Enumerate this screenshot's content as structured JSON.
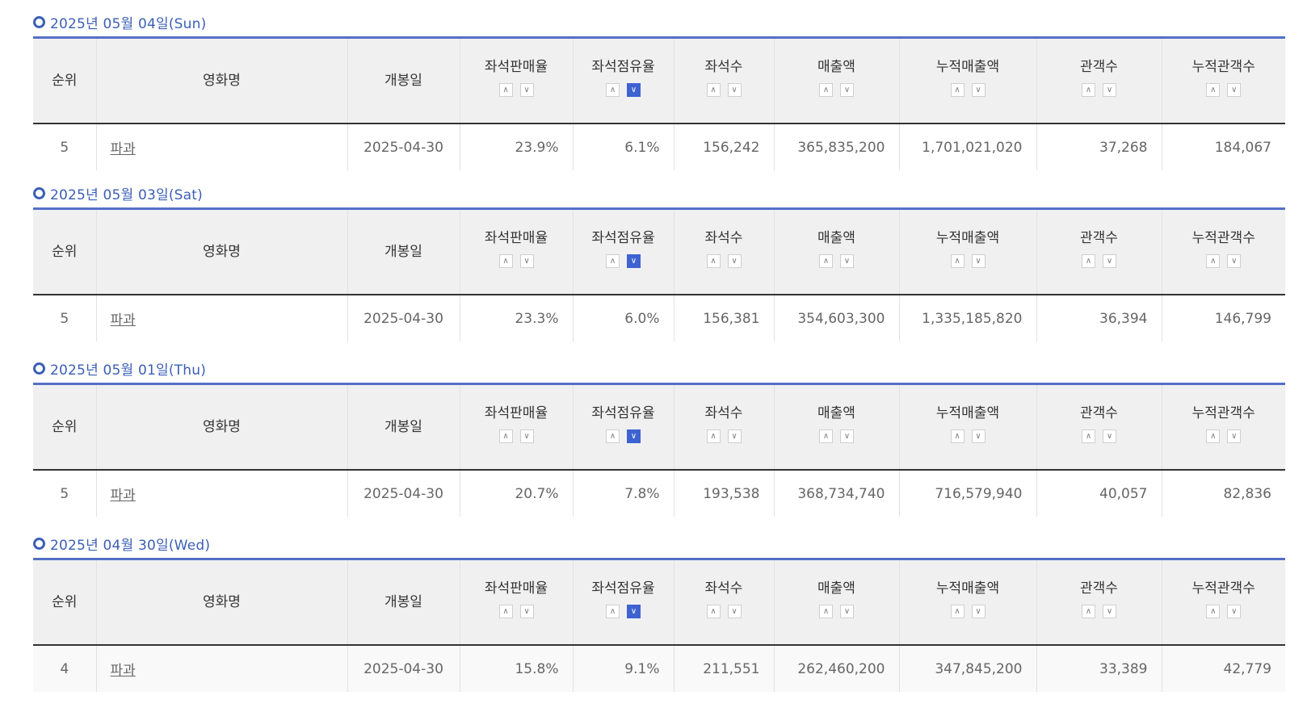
{
  "columns": {
    "rank": "순위",
    "title": "영화명",
    "open_date": "개봉일",
    "seat_sales_rate": "좌석판매율",
    "seat_share": "좌석점유율",
    "seats": "좌석수",
    "sales": "매출액",
    "cum_sales": "누적매출액",
    "audience": "관객수",
    "cum_audience": "누적관객수"
  },
  "sort_icons": {
    "up": "chevron-up-icon",
    "down": "chevron-down-icon",
    "active_column": "좌석점유율",
    "active_direction": "down",
    "active_color": "#3d63d1"
  },
  "accent_color": "#3b5fb5",
  "days": [
    {
      "date_label": "2025년 05월 04일(Sun)",
      "row": {
        "rank": "5",
        "title": "파과",
        "open_date": "2025-04-30",
        "seat_sales_rate": "23.9%",
        "seat_share": "6.1%",
        "seats": "156,242",
        "sales": "365,835,200",
        "cum_sales": "1,701,021,020",
        "audience": "37,268",
        "cum_audience": "184,067"
      }
    },
    {
      "date_label": "2025년 05월 03일(Sat)",
      "row": {
        "rank": "5",
        "title": "파과",
        "open_date": "2025-04-30",
        "seat_sales_rate": "23.3%",
        "seat_share": "6.0%",
        "seats": "156,381",
        "sales": "354,603,300",
        "cum_sales": "1,335,185,820",
        "audience": "36,394",
        "cum_audience": "146,799"
      }
    },
    {
      "date_label": "2025년 05월 01일(Thu)",
      "row": {
        "rank": "5",
        "title": "파과",
        "open_date": "2025-04-30",
        "seat_sales_rate": "20.7%",
        "seat_share": "7.8%",
        "seats": "193,538",
        "sales": "368,734,740",
        "cum_sales": "716,579,940",
        "audience": "40,057",
        "cum_audience": "82,836"
      }
    },
    {
      "date_label": "2025년 04월 30일(Wed)",
      "row": {
        "rank": "4",
        "title": "파과",
        "open_date": "2025-04-30",
        "seat_sales_rate": "15.8%",
        "seat_share": "9.1%",
        "seats": "211,551",
        "sales": "262,460,200",
        "cum_sales": "347,845,200",
        "audience": "33,389",
        "cum_audience": "42,779"
      }
    }
  ]
}
